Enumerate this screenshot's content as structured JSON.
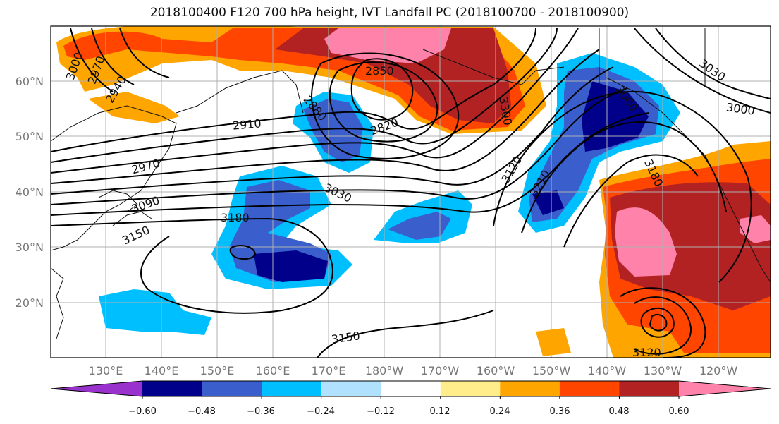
{
  "title": "2018100400 F120 700 hPa height, IVT Landfall PC (2018100700 - 2018100900)",
  "map": {
    "lon_labels": [
      "130°E",
      "140°E",
      "150°E",
      "160°E",
      "170°E",
      "180°W",
      "170°W",
      "160°W",
      "150°W",
      "140°W",
      "130°W",
      "120°W"
    ],
    "lat_labels": [
      "60°N",
      "50°N",
      "40°N",
      "30°N",
      "20°N"
    ],
    "contour_labels": [
      "3000",
      "2970",
      "2940",
      "2850",
      "2880",
      "2910",
      "2820",
      "3300",
      "3060",
      "3030",
      "3000",
      "2970",
      "3090",
      "3150",
      "3030",
      "3180",
      "3120",
      "3210",
      "3180",
      "3150",
      "3120"
    ]
  },
  "colorbar": {
    "ticks": [
      "−0.60",
      "−0.48",
      "−0.36",
      "−0.24",
      "−0.12",
      "0.12",
      "0.24",
      "0.36",
      "0.48",
      "0.60"
    ],
    "colors": [
      "#9932cc",
      "#00008b",
      "#3a5fcd",
      "#00bfff",
      "#b0e2ff",
      "#ffffff",
      "#ffec8b",
      "#ffa500",
      "#ff4500",
      "#b22222",
      "#ff82ab",
      "#ff82ab"
    ]
  }
}
